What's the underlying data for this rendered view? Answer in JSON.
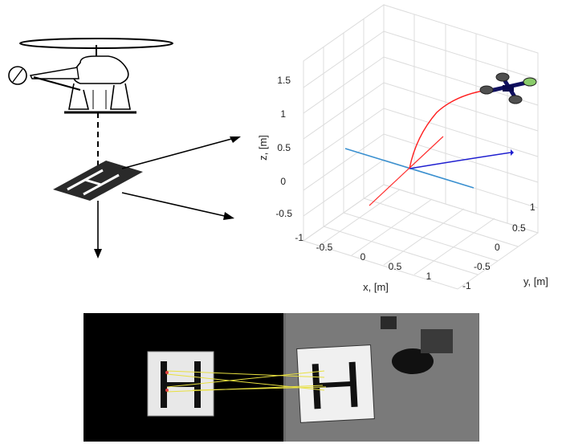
{
  "plot": {
    "z_label": "z, [m]",
    "x_label": "x, [m]",
    "y_label": "y, [m]",
    "z_ticks": [
      "1.5",
      "1",
      "0.5",
      "0",
      "-0.5",
      "-1"
    ],
    "x_ticks": [
      "-0.5",
      "0",
      "0.5",
      "1"
    ],
    "y_ticks": [
      "1",
      "0.5",
      "0",
      "-0.5",
      "-1"
    ]
  },
  "colors": {
    "trajectory": "#ff2020",
    "x_axis": "#ff3030",
    "y_axis": "#2020d0",
    "z_axis": "#3090d0",
    "grid": "#d8d8d8",
    "quad_body": "#101060",
    "match_lines": "#e8e040"
  }
}
